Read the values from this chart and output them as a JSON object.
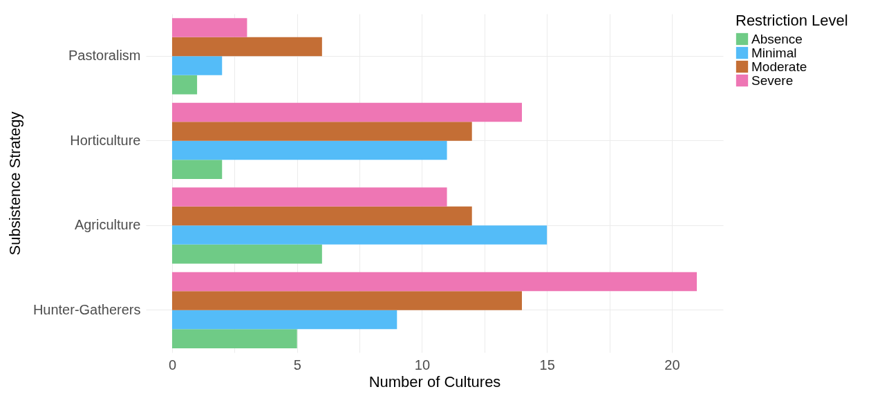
{
  "chart_data": {
    "type": "bar",
    "orientation": "horizontal",
    "xlabel": "Number of Cultures",
    "ylabel": "Subsistence Strategy",
    "legend_title": "Restriction Level",
    "categories": [
      "Pastoralism",
      "Horticulture",
      "Agriculture",
      "Hunter-Gatherers"
    ],
    "series": [
      {
        "name": "Absence",
        "color": "#6fcb86",
        "values": [
          1,
          2,
          6,
          5
        ]
      },
      {
        "name": "Minimal",
        "color": "#54bcf8",
        "values": [
          2,
          11,
          15,
          9
        ]
      },
      {
        "name": "Moderate",
        "color": "#c46e35",
        "values": [
          6,
          12,
          12,
          14
        ]
      },
      {
        "name": "Severe",
        "color": "#ee76b4",
        "values": [
          3,
          14,
          11,
          21
        ]
      }
    ],
    "xlim": [
      -1.05,
      22.05
    ],
    "xticks": [
      0,
      {
        "value": 2.5,
        "label": null
      },
      5,
      {
        "value": 7.5,
        "label": null
      },
      10,
      {
        "value": 12.5,
        "label": null
      },
      15,
      {
        "value": 17.5,
        "label": null
      },
      20
    ],
    "grid": true,
    "legend": "right"
  }
}
